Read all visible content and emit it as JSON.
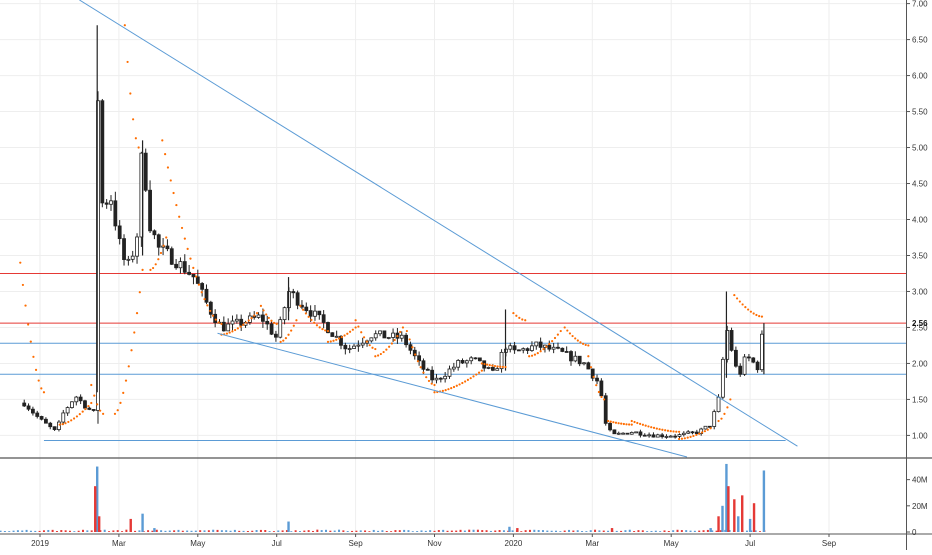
{
  "chart_data": {
    "type": "candlestick",
    "title": "",
    "xlabel": "",
    "ylabel": "",
    "price_axis": {
      "ylim": [
        0.7,
        7.05
      ],
      "ticks": [
        "7.00",
        "6.50",
        "6.00",
        "5.50",
        "5.00",
        "4.50",
        "4.00",
        "3.50",
        "3.00",
        "2.50",
        "2.00",
        "1.50",
        "1.00"
      ],
      "last_price_label": "2.56"
    },
    "volume_axis": {
      "ylim": [
        0,
        55
      ],
      "ticks": [
        {
          "v": 40,
          "label": "40M"
        },
        {
          "v": 20,
          "label": "20M"
        },
        {
          "v": 0,
          "label": "0"
        }
      ]
    },
    "x_ticks": [
      "2019",
      "Mar",
      "May",
      "Jul",
      "Sep",
      "Nov",
      "2020",
      "Mar",
      "May",
      "Jul",
      "Sep"
    ],
    "x_tick_months": [
      0,
      2,
      4,
      6,
      8,
      10,
      12,
      14,
      16,
      18,
      20
    ],
    "price_path": [
      [
        -0.4,
        1.45
      ],
      [
        0.0,
        1.22
      ],
      [
        0.4,
        1.05
      ],
      [
        0.6,
        1.32
      ],
      [
        0.9,
        1.55
      ],
      [
        1.2,
        1.38
      ],
      [
        1.4,
        1.3
      ],
      [
        1.45,
        6.7
      ],
      [
        1.5,
        4.2
      ],
      [
        1.8,
        4.3
      ],
      [
        2.0,
        3.7
      ],
      [
        2.2,
        3.3
      ],
      [
        2.45,
        3.7
      ],
      [
        2.6,
        5.1
      ],
      [
        2.75,
        4.0
      ],
      [
        3.0,
        3.6
      ],
      [
        3.4,
        3.45
      ],
      [
        3.9,
        3.2
      ],
      [
        4.3,
        2.75
      ],
      [
        4.6,
        2.5
      ],
      [
        5.0,
        2.55
      ],
      [
        5.6,
        2.65
      ],
      [
        6.0,
        2.35
      ],
      [
        6.3,
        3.0
      ],
      [
        6.8,
        2.75
      ],
      [
        7.2,
        2.55
      ],
      [
        7.8,
        2.2
      ],
      [
        8.4,
        2.4
      ],
      [
        9.2,
        2.35
      ],
      [
        9.6,
        2.0
      ],
      [
        10.0,
        1.75
      ],
      [
        10.6,
        2.0
      ],
      [
        11.0,
        2.05
      ],
      [
        11.5,
        1.85
      ],
      [
        11.8,
        2.25
      ],
      [
        12.0,
        2.15
      ],
      [
        12.6,
        2.25
      ],
      [
        13.2,
        2.15
      ],
      [
        13.8,
        2.0
      ],
      [
        14.2,
        1.7
      ],
      [
        14.3,
        1.2
      ],
      [
        14.5,
        1.0
      ],
      [
        15.0,
        1.05
      ],
      [
        15.6,
        1.0
      ],
      [
        16.2,
        1.0
      ],
      [
        16.7,
        1.05
      ],
      [
        17.0,
        1.15
      ],
      [
        17.2,
        1.5
      ],
      [
        17.4,
        2.5
      ],
      [
        17.7,
        1.8
      ],
      [
        17.9,
        2.1
      ],
      [
        18.2,
        1.95
      ],
      [
        18.35,
        2.56
      ]
    ],
    "parabolic_sar": [
      {
        "from": [
          -0.5,
          3.4
        ],
        "to": [
          0.1,
          1.6
        ]
      },
      {
        "from": [
          0.5,
          1.15
        ],
        "to": [
          1.3,
          1.45
        ]
      },
      {
        "from": [
          1.3,
          1.7
        ],
        "to": [
          1.6,
          1.3
        ]
      },
      {
        "from": [
          1.9,
          1.3
        ],
        "to": [
          2.6,
          3.3
        ]
      },
      {
        "from": [
          2.15,
          6.7
        ],
        "to": [
          2.5,
          5.0
        ]
      },
      {
        "from": [
          2.8,
          3.3
        ],
        "to": [
          3.2,
          3.75
        ]
      },
      {
        "from": [
          3.1,
          5.1
        ],
        "to": [
          4.6,
          2.55
        ]
      },
      {
        "from": [
          4.6,
          2.4
        ],
        "to": [
          5.5,
          2.7
        ]
      },
      {
        "from": [
          5.6,
          2.8
        ],
        "to": [
          6.0,
          2.55
        ]
      },
      {
        "from": [
          6.1,
          2.3
        ],
        "to": [
          6.5,
          2.6
        ]
      },
      {
        "from": [
          6.6,
          2.8
        ],
        "to": [
          7.3,
          2.45
        ]
      },
      {
        "from": [
          7.3,
          2.3
        ],
        "to": [
          8.0,
          2.5
        ]
      },
      {
        "from": [
          8.0,
          2.6
        ],
        "to": [
          8.5,
          2.2
        ]
      },
      {
        "from": [
          8.5,
          2.1
        ],
        "to": [
          9.2,
          2.5
        ]
      },
      {
        "from": [
          9.3,
          2.45
        ],
        "to": [
          10.0,
          1.7
        ]
      },
      {
        "from": [
          10.0,
          1.6
        ],
        "to": [
          11.2,
          1.9
        ]
      },
      {
        "from": [
          11.2,
          2.0
        ],
        "to": [
          11.8,
          1.95
        ]
      },
      {
        "from": [
          12.0,
          2.7
        ],
        "to": [
          12.3,
          2.6
        ]
      },
      {
        "from": [
          12.4,
          2.1
        ],
        "to": [
          13.2,
          2.45
        ]
      },
      {
        "from": [
          13.3,
          2.5
        ],
        "to": [
          13.9,
          2.25
        ]
      },
      {
        "from": [
          13.9,
          2.1
        ],
        "to": [
          14.3,
          1.5
        ]
      },
      {
        "from": [
          14.4,
          1.2
        ],
        "to": [
          15.0,
          1.15
        ]
      },
      {
        "from": [
          15.0,
          1.2
        ],
        "to": [
          16.2,
          1.05
        ]
      },
      {
        "from": [
          16.2,
          0.95
        ],
        "to": [
          17.0,
          1.1
        ]
      },
      {
        "from": [
          17.2,
          1.2
        ],
        "to": [
          17.5,
          1.5
        ]
      },
      {
        "from": [
          17.6,
          2.95
        ],
        "to": [
          18.3,
          2.65
        ]
      }
    ],
    "horizontal_levels": [
      {
        "y": 3.25,
        "color": "#e53935"
      },
      {
        "y": 2.56,
        "color": "#e53935"
      },
      {
        "y": 2.28,
        "color": "#5b9bd5"
      },
      {
        "y": 1.85,
        "color": "#5b9bd5"
      }
    ],
    "trendlines": [
      {
        "from": [
          1.0,
          7.05
        ],
        "to": [
          19.2,
          0.85
        ],
        "color": "#5b9bd5"
      },
      {
        "from": [
          4.5,
          2.42
        ],
        "to": [
          16.4,
          0.7
        ],
        "color": "#5b9bd5"
      },
      {
        "from": [
          0.1,
          0.93
        ],
        "to": [
          18.9,
          0.93
        ],
        "color": "#5b9bd5"
      }
    ],
    "volume_spikes": [
      [
        1.45,
        50,
        "#5b9bd5"
      ],
      [
        1.4,
        35,
        "#e53935"
      ],
      [
        1.5,
        12,
        "#e53935"
      ],
      [
        2.3,
        10,
        "#e53935"
      ],
      [
        2.6,
        14,
        "#5b9bd5"
      ],
      [
        2.9,
        3,
        "#5b9bd5"
      ],
      [
        6.3,
        8,
        "#5b9bd5"
      ],
      [
        11.9,
        4,
        "#5b9bd5"
      ],
      [
        12.1,
        3,
        "#e53935"
      ],
      [
        14.5,
        3,
        "#e53935"
      ],
      [
        17.0,
        3,
        "#5b9bd5"
      ],
      [
        17.2,
        12,
        "#e53935"
      ],
      [
        17.3,
        20,
        "#5b9bd5"
      ],
      [
        17.4,
        52,
        "#5b9bd5"
      ],
      [
        17.45,
        35,
        "#e53935"
      ],
      [
        17.6,
        25,
        "#e53935"
      ],
      [
        17.7,
        12,
        "#5b9bd5"
      ],
      [
        17.8,
        28,
        "#e53935"
      ],
      [
        18.0,
        10,
        "#5b9bd5"
      ],
      [
        18.1,
        22,
        "#e53935"
      ],
      [
        18.35,
        47,
        "#5b9bd5"
      ]
    ],
    "colors": {
      "up": "#ffffff",
      "down": "#222222",
      "candle_outline": "#222222",
      "sar": "#ff6d00",
      "grid": "#eeeeee",
      "axis_text": "#333333"
    }
  }
}
